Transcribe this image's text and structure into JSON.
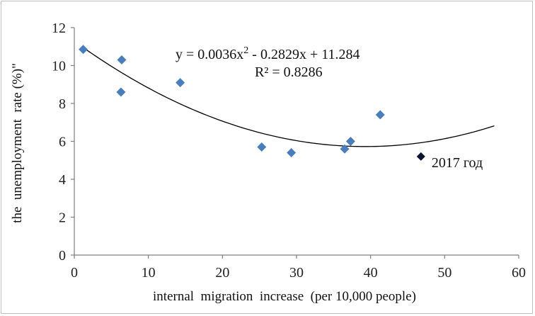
{
  "chart_data": {
    "type": "scatter",
    "xlabel": "internal  migration  increase  (per 10,000 people)",
    "ylabel": "the  unemployment  rate (%)\"",
    "xlim": [
      0,
      60
    ],
    "ylim": [
      0,
      12
    ],
    "xticks": [
      0,
      10,
      20,
      30,
      40,
      50,
      60
    ],
    "yticks": [
      0,
      2,
      4,
      6,
      8,
      10,
      12
    ],
    "grid": false,
    "marker_color": "#4a7ebb",
    "highlight_color": "#0a1430",
    "trendline_color": "#000000",
    "points": [
      {
        "x": 1.2,
        "y": 10.85
      },
      {
        "x": 6.4,
        "y": 10.3
      },
      {
        "x": 6.3,
        "y": 8.6
      },
      {
        "x": 14.3,
        "y": 9.1
      },
      {
        "x": 25.3,
        "y": 5.7
      },
      {
        "x": 29.3,
        "y": 5.4
      },
      {
        "x": 36.5,
        "y": 5.6
      },
      {
        "x": 37.3,
        "y": 6.0
      },
      {
        "x": 41.3,
        "y": 7.4
      }
    ],
    "highlighted_point": {
      "x": 46.8,
      "y": 5.2,
      "label": "2017 год"
    },
    "trendline": {
      "type": "polynomial",
      "a": 0.0036,
      "b": -0.2829,
      "c": 11.284,
      "x_range": [
        1.2,
        56.7
      ],
      "equation_base": "y = 0.0036x",
      "equation_sup": "2",
      "equation_rest": " - 0.2829x + 11.284",
      "r2_label": "R² = 0.8286"
    }
  }
}
